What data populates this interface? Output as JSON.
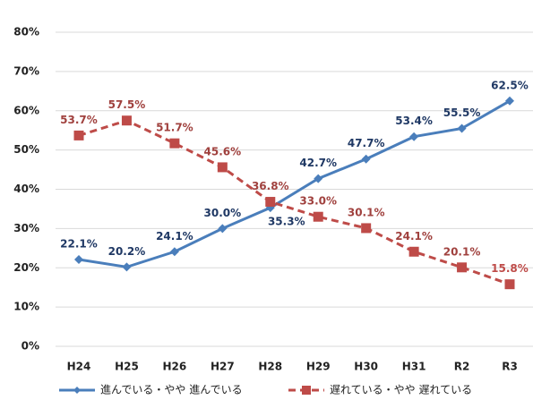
{
  "chart_data": {
    "type": "line",
    "categories": [
      "H24",
      "H25",
      "H26",
      "H27",
      "H28",
      "H29",
      "H30",
      "H31",
      "R2",
      "R3"
    ],
    "series": [
      {
        "name": "進んでいる・やや 進んでいる",
        "color": "#4a7ebb",
        "values": [
          22.1,
          20.2,
          24.1,
          30.0,
          35.3,
          42.7,
          47.7,
          53.4,
          55.5,
          62.5
        ],
        "value_labels": [
          "22.1%",
          "20.2%",
          "24.1%",
          "30.0%",
          "35.3%",
          "42.7%",
          "47.7%",
          "53.4%",
          "55.5%",
          "62.5%"
        ]
      },
      {
        "name": "遅れている・やや 遅れている",
        "color": "#be4b48",
        "values": [
          53.7,
          57.5,
          51.7,
          45.6,
          36.8,
          33.0,
          30.1,
          24.1,
          20.1,
          15.8
        ],
        "value_labels": [
          "53.7%",
          "57.5%",
          "51.7%",
          "45.6%",
          "36.8%",
          "33.0%",
          "30.1%",
          "24.1%",
          "20.1%",
          "15.8%"
        ]
      }
    ],
    "ylim": [
      0,
      80
    ],
    "yticks": [
      {
        "value": 0,
        "label": "0%"
      },
      {
        "value": 10,
        "label": "10%"
      },
      {
        "value": 20,
        "label": "20%"
      },
      {
        "value": 30,
        "label": "30%"
      },
      {
        "value": 40,
        "label": "40%"
      },
      {
        "value": 50,
        "label": "50%"
      },
      {
        "value": 60,
        "label": "60%"
      },
      {
        "value": 70,
        "label": "70%"
      },
      {
        "value": 80,
        "label": "80%"
      }
    ],
    "grid": true
  }
}
